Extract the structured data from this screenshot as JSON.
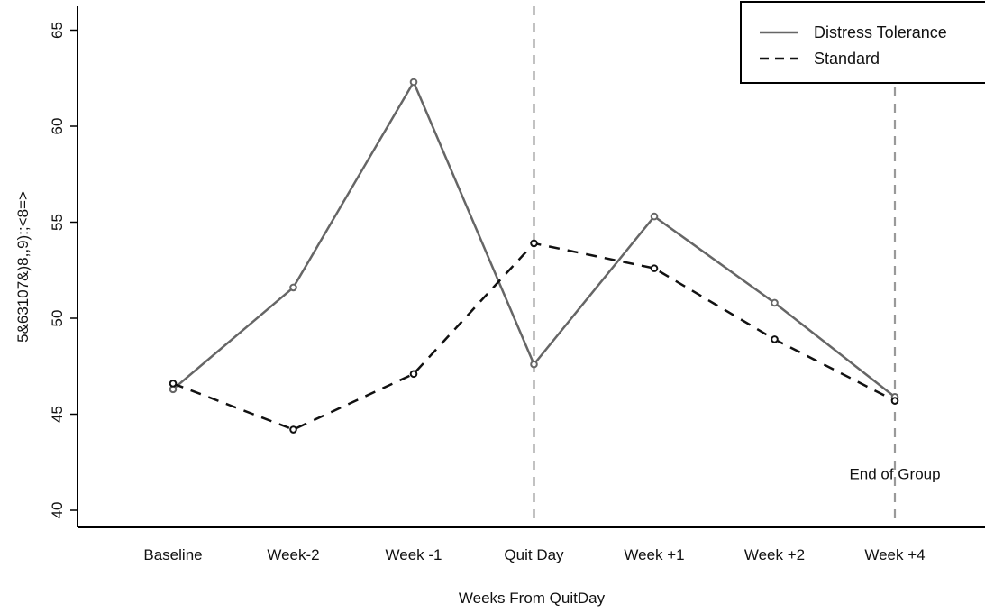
{
  "chart_data": {
    "type": "line",
    "title": "",
    "xlabel": "Weeks From QuitDay",
    "ylabel": "5&63107&)8,,9):;<8=>",
    "categories": [
      "Baseline",
      "Week-2",
      "Week -1",
      "Quit Day",
      "Week +1",
      "Week +2",
      "Week +4"
    ],
    "ylim": [
      39,
      65.5
    ],
    "yticks": [
      40,
      45,
      50,
      55,
      60,
      65
    ],
    "grid": false,
    "legend_position": "top-right",
    "series": [
      {
        "name": "Distress Tolerance",
        "values": [
          46.3,
          51.6,
          62.3,
          47.6,
          55.3,
          50.8,
          45.9
        ],
        "color": "#666666",
        "line_style": "solid"
      },
      {
        "name": "Standard",
        "values": [
          46.6,
          44.2,
          47.1,
          53.9,
          52.6,
          48.9,
          45.7
        ],
        "color": "#111111",
        "line_style": "dashed"
      }
    ],
    "reference_lines": [
      {
        "category": "Quit Day",
        "color": "#999999",
        "style": "dashed"
      },
      {
        "category": "Week +4",
        "color": "#999999",
        "style": "dashed"
      }
    ],
    "annotations": [
      {
        "text": "End of Group",
        "category": "Week +4",
        "y": 41.9
      }
    ]
  }
}
